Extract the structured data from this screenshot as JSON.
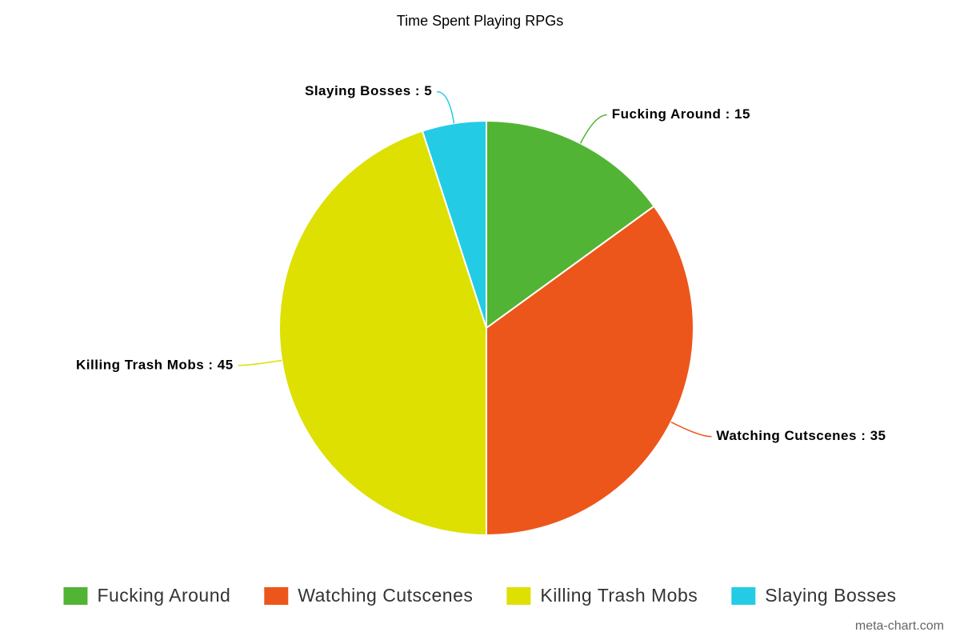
{
  "chart_data": {
    "type": "pie",
    "title": "Time Spent Playing RPGs",
    "categories": [
      "Fucking Around",
      "Watching Cutscenes",
      "Killing Trash Mobs",
      "Slaying Bosses"
    ],
    "values": [
      15,
      35,
      45,
      5
    ],
    "value_labels": [
      "Fucking Around : 15",
      "Watching Cutscenes : 35",
      "Killing Trash Mobs : 45",
      "Slaying Bosses : 5"
    ],
    "colors": [
      "#52b434",
      "#ed561b",
      "#dde000",
      "#24cbe5"
    ],
    "legend": "bottom",
    "credit": "meta-chart.com"
  }
}
